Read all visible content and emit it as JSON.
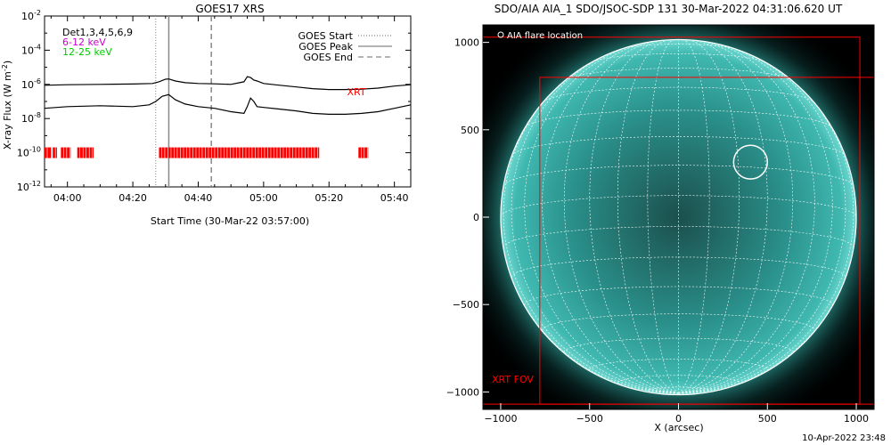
{
  "stamp": "10-Apr-2022 23:48",
  "chart_data": [
    {
      "type": "line",
      "title": "GOES17 XRS",
      "xlabel": "Start Time (30-Mar-22 03:57:00)",
      "ylabel_main": "X-ray Flux (W m",
      "ylabel_exp": "-2",
      "ylabel_close": ")",
      "x_unit": "minutes",
      "xlim": [
        233,
        345
      ],
      "ylim_log10": [
        -12,
        -2
      ],
      "x_ticks": [
        {
          "value": 240,
          "label": "04:00"
        },
        {
          "value": 260,
          "label": "04:20"
        },
        {
          "value": 280,
          "label": "04:40"
        },
        {
          "value": 300,
          "label": "05:00"
        },
        {
          "value": 320,
          "label": "05:20"
        },
        {
          "value": 340,
          "label": "05:40"
        }
      ],
      "y_ticks": [
        {
          "value": -2,
          "base": "10",
          "exp": "-2"
        },
        {
          "value": -4,
          "base": "10",
          "exp": "-4"
        },
        {
          "value": -6,
          "base": "10",
          "exp": "-6"
        },
        {
          "value": -8,
          "base": "10",
          "exp": "-8"
        },
        {
          "value": -10,
          "base": "10",
          "exp": "-10"
        },
        {
          "value": -12,
          "base": "10",
          "exp": "-12"
        }
      ],
      "channel_labels": [
        {
          "text": "Det1,3,4,5,6,9",
          "color": "#000000"
        },
        {
          "text": "6-12 keV",
          "color": "#cc00cc"
        },
        {
          "text": "12-25 keV",
          "color": "#00cc00"
        }
      ],
      "legend": {
        "placement": "top-right",
        "entries": [
          {
            "label": "GOES Start",
            "style": "dotted"
          },
          {
            "label": "GOES Peak",
            "style": "solid"
          },
          {
            "label": "GOES End",
            "style": "dashed"
          }
        ]
      },
      "event_lines": {
        "start": 267,
        "peak": 271,
        "end": 284
      },
      "xrt_label": "XRT",
      "xrt_label_color": "#ff0000",
      "xrt_bar_log10": -10,
      "xrt_segments": [
        [
          233,
          235
        ],
        [
          235.5,
          236.8
        ],
        [
          238,
          241
        ],
        [
          243,
          248
        ],
        [
          268,
          317
        ],
        [
          329,
          332
        ]
      ],
      "series": [
        {
          "name": "",
          "color": "#000000",
          "x": [
            233,
            240,
            250,
            260,
            266,
            268,
            270,
            271,
            273,
            276,
            280,
            285,
            290,
            294,
            295,
            296,
            297,
            298,
            300,
            305,
            310,
            315,
            320,
            325,
            330,
            335,
            340,
            345
          ],
          "y_log10": [
            -6.05,
            -6.02,
            -6.0,
            -5.98,
            -5.95,
            -5.85,
            -5.7,
            -5.68,
            -5.8,
            -5.9,
            -5.95,
            -5.97,
            -6.0,
            -5.85,
            -5.55,
            -5.6,
            -5.75,
            -5.8,
            -5.95,
            -6.05,
            -6.15,
            -6.25,
            -6.3,
            -6.3,
            -6.28,
            -6.22,
            -6.1,
            -6.02
          ]
        },
        {
          "name": "",
          "color": "#000000",
          "x": [
            233,
            240,
            250,
            260,
            265,
            267,
            269,
            271,
            273,
            276,
            280,
            285,
            290,
            294,
            295,
            296,
            297,
            298,
            300,
            305,
            310,
            315,
            320,
            325,
            330,
            335,
            340,
            345
          ],
          "y_log10": [
            -7.4,
            -7.3,
            -7.25,
            -7.3,
            -7.2,
            -7.0,
            -6.7,
            -6.6,
            -6.9,
            -7.15,
            -7.3,
            -7.4,
            -7.6,
            -7.7,
            -7.3,
            -6.8,
            -7.0,
            -7.3,
            -7.35,
            -7.45,
            -7.55,
            -7.7,
            -7.75,
            -7.75,
            -7.7,
            -7.6,
            -7.4,
            -7.2
          ]
        }
      ]
    },
    {
      "type": "image",
      "title": "SDO/AIA AIA_1 SDO/JSOC-SDP 131 30-Mar-2022 04:31:06.620 UT",
      "xlabel": "X (arcsec)",
      "ylabel": "",
      "xlim": [
        -1100,
        1100
      ],
      "ylim": [
        -1100,
        1100
      ],
      "x_ticks": [
        -1000,
        -500,
        0,
        500,
        1000
      ],
      "y_ticks": [
        -1000,
        -500,
        0,
        500,
        1000
      ],
      "x_tick_labels": [
        "−1000",
        "−500",
        "0",
        "500",
        "1000"
      ],
      "y_tick_labels": [
        "−1000",
        "−500",
        "0",
        "500",
        "1000"
      ],
      "solar_radius": 1000,
      "disk_color": "#2a8f8a",
      "flare_location": {
        "label": "AIA flare location",
        "x": 405,
        "y": 315,
        "radius": 95
      },
      "xrt_fov": {
        "label": "XRT FOV",
        "color": "#ff0000",
        "boxes": [
          {
            "x0": -1100,
            "x1": 1020,
            "y0": -1070,
            "y1": 1030
          },
          {
            "x0": -780,
            "x1": 1100,
            "y0": -1070,
            "y1": 800
          }
        ]
      },
      "grid_step_deg": 10
    }
  ]
}
